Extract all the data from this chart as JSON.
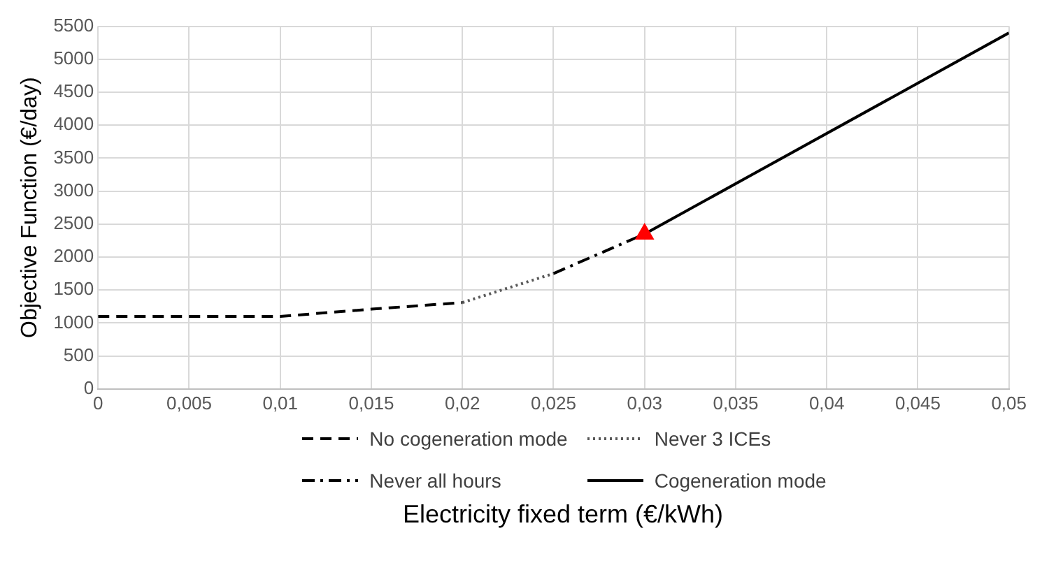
{
  "chart_data": {
    "type": "line",
    "xlabel": "Electricity fixed term (€/kWh)",
    "ylabel": "Objective Function (€/day)",
    "xlim": [
      0,
      0.05
    ],
    "xticks": [
      {
        "value": 0,
        "label": "0"
      },
      {
        "value": 0.005,
        "label": "0,005"
      },
      {
        "value": 0.01,
        "label": "0,01"
      },
      {
        "value": 0.015,
        "label": "0,015"
      },
      {
        "value": 0.02,
        "label": "0,02"
      },
      {
        "value": 0.025,
        "label": "0,025"
      },
      {
        "value": 0.03,
        "label": "0,03"
      },
      {
        "value": 0.035,
        "label": "0,035"
      },
      {
        "value": 0.04,
        "label": "0,04"
      },
      {
        "value": 0.045,
        "label": "0,045"
      },
      {
        "value": 0.05,
        "label": "0,05"
      }
    ],
    "ylim": [
      0,
      5500
    ],
    "yticks": [
      0,
      500,
      1000,
      1500,
      2000,
      2500,
      3000,
      3500,
      4000,
      4500,
      5000,
      5500
    ],
    "grid": true,
    "legend": "bottom",
    "marker": "none",
    "series": [
      {
        "name": "No cogeneration mode",
        "color": "#000000",
        "line_style": "dashed",
        "x": [
          0,
          0.005,
          0.01,
          0.015,
          0.02
        ],
        "values": [
          1100,
          1100,
          1100,
          1210,
          1310
        ]
      },
      {
        "name": "Never 3 ICEs",
        "color": "#595959",
        "line_style": "dotted",
        "x": [
          0.02,
          0.025
        ],
        "values": [
          1310,
          1750
        ]
      },
      {
        "name": "Never all hours",
        "color": "#000000",
        "line_style": "dashdot",
        "x": [
          0.025,
          0.03
        ],
        "values": [
          1750,
          2350
        ]
      },
      {
        "name": "Cogeneration mode",
        "color": "#000000",
        "line_style": "solid",
        "x": [
          0.03,
          0.05
        ],
        "values": [
          2350,
          5400
        ]
      },
      {
        "type": "scatter",
        "color": "#ff0000",
        "marker": "triangle",
        "x": [
          0.03
        ],
        "values": [
          2350
        ]
      }
    ]
  }
}
